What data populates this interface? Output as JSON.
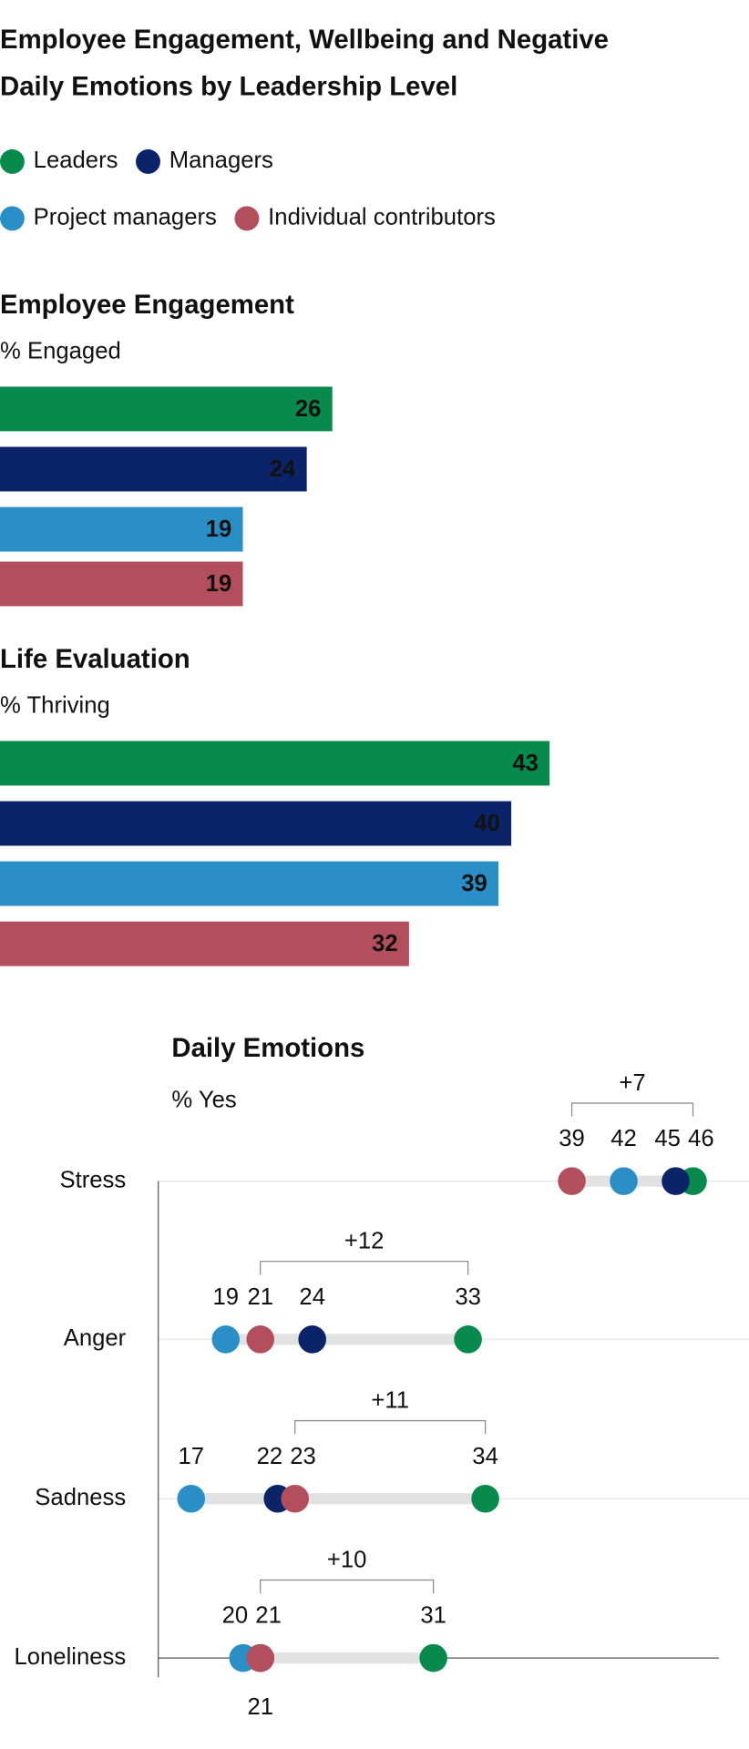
{
  "title": [
    "Employee Engagement, Wellbeing and Negative",
    "Daily Emotions by Leadership Level"
  ],
  "chart_data": [
    {
      "type": "bar",
      "title": "Employee Engagement",
      "subtitle": "% Engaged",
      "xlim": [
        0,
        58.6
      ],
      "series": [
        {
          "name": "Leaders",
          "color": "#078a4c",
          "label_color": "#ffffff",
          "values": [
            26
          ]
        },
        {
          "name": "Managers",
          "color": "#0a2369",
          "label_color": "#ffffff",
          "values": [
            24
          ]
        },
        {
          "name": "Project managers",
          "color": "#2a8fc6",
          "label_color": "#111111",
          "values": [
            19
          ]
        },
        {
          "name": "Individual contributors",
          "color": "#b34f5c",
          "label_color": "#ffffff",
          "values": [
            19
          ]
        }
      ]
    },
    {
      "type": "bar",
      "title": "Life Evaluation",
      "subtitle": "% Thriving",
      "xlim": [
        0,
        58.6
      ],
      "series": [
        {
          "name": "Leaders",
          "color": "#078a4c",
          "label_color": "#ffffff",
          "values": [
            43
          ]
        },
        {
          "name": "Managers",
          "color": "#0a2369",
          "label_color": "#ffffff",
          "values": [
            40
          ]
        },
        {
          "name": "Project managers",
          "color": "#2a8fc6",
          "label_color": "#111111",
          "values": [
            39
          ]
        },
        {
          "name": "Individual contributors",
          "color": "#b34f5c",
          "label_color": "#ffffff",
          "values": [
            32
          ]
        }
      ]
    },
    {
      "type": "dot",
      "title": "Daily Emotions",
      "subtitle": "% Yes",
      "xlim": [
        15.1,
        47.5
      ],
      "categories": [
        "Stress",
        "Anger",
        "Sadness",
        "Loneliness"
      ],
      "gap_labels": [
        "+7",
        "+12",
        "+11",
        "+10"
      ],
      "series": [
        {
          "name": "Leaders",
          "color": "#078a4c",
          "values": [
            46,
            33,
            34,
            31
          ]
        },
        {
          "name": "Managers",
          "color": "#0a2369",
          "values": [
            45,
            24,
            22,
            21
          ]
        },
        {
          "name": "Project managers",
          "color": "#2a8fc6",
          "values": [
            42,
            19,
            17,
            20
          ]
        },
        {
          "name": "Individual contributors",
          "color": "#b34f5c",
          "values": [
            39,
            21,
            23,
            21
          ]
        }
      ]
    }
  ]
}
